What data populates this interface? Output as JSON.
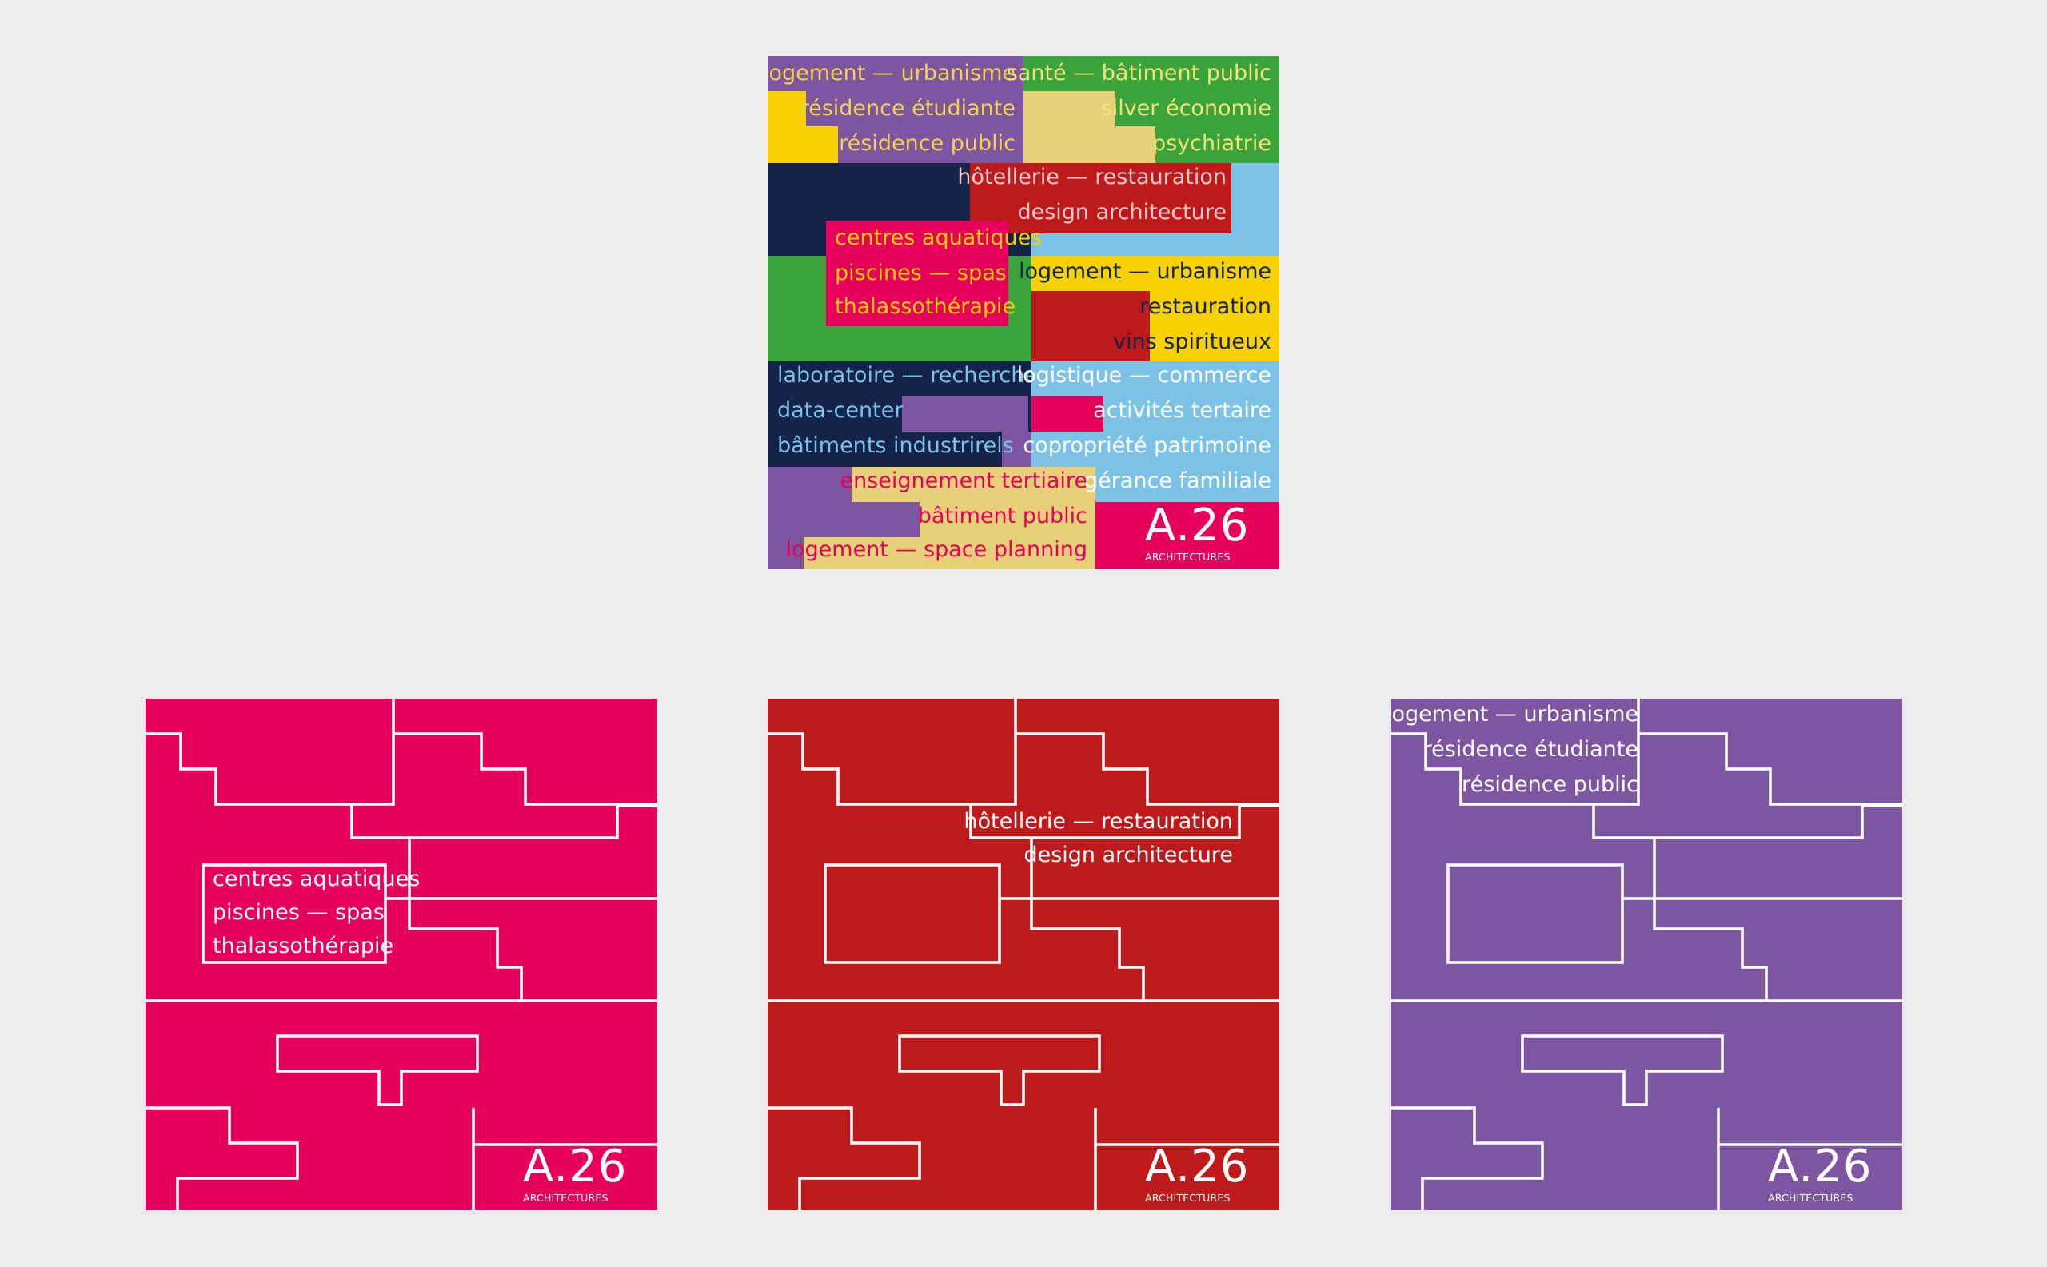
{
  "logo": {
    "mark": "A.26",
    "sub": "ARCHITECTURES"
  },
  "colors": {
    "background": "#ececec",
    "pink": "#e6005c",
    "red": "#be1a1c",
    "purple": "#7e55a0",
    "green": "#3aa33a",
    "yellow": "#f7d100",
    "sand": "#e8d07a",
    "navy": "#14234a",
    "sky": "#7cc2e6"
  },
  "hero": {
    "labels": [
      "logement — urbanisme",
      "résidence étudiante",
      "résidence public",
      "santé — bâtiment public",
      "silver économie",
      "psychiatrie",
      "hôtellerie — restauration",
      "design architecture",
      "centres aquatiques",
      "piscines — spas",
      "thalassothérapie",
      "logement — urbanisme",
      "restauration",
      "vins spiritueux",
      "laboratoire — recherche",
      "data-center",
      "bâtiments industrirels",
      "logistique — commerce",
      "activités tertaire",
      "copropriété patrimoine",
      "gérance familiale",
      "enseignement tertiaire",
      "bâtiment public",
      "logement — space planning"
    ]
  },
  "pink_card": {
    "lines": [
      "centres aquatiques",
      "piscines — spas",
      "thalassothérapie"
    ]
  },
  "red_card": {
    "lines": [
      "hôtellerie — restauration",
      "design architecture"
    ]
  },
  "purple_card": {
    "lines": [
      "logement — urbanisme",
      "résidence étudiante",
      "résidence public"
    ]
  }
}
